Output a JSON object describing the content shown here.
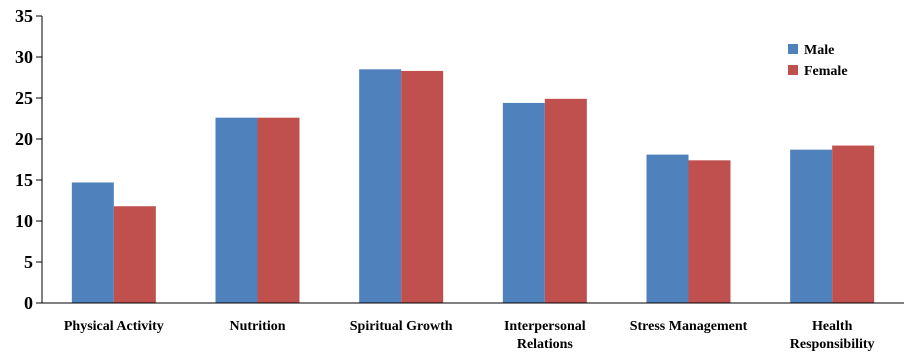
{
  "chart_data": {
    "type": "bar",
    "title": "",
    "xlabel": "",
    "ylabel": "",
    "ylim": [
      0,
      35
    ],
    "yticks": [
      0,
      5,
      10,
      15,
      20,
      25,
      30,
      35
    ],
    "grid": false,
    "legend_position": "top-right",
    "categories": [
      [
        "Physical Activity"
      ],
      [
        "Nutrition"
      ],
      [
        "Spiritual Growth"
      ],
      [
        "Interpersonal",
        "Relations"
      ],
      [
        "Stress Management"
      ],
      [
        "Health",
        "Responsibility"
      ]
    ],
    "series": [
      {
        "name": "Male",
        "color": "#4F81BD",
        "values": [
          14.7,
          22.6,
          28.5,
          24.4,
          18.1,
          18.7
        ]
      },
      {
        "name": "Female",
        "color": "#C0504D",
        "values": [
          11.8,
          22.6,
          28.3,
          24.9,
          17.4,
          19.2
        ]
      }
    ]
  }
}
